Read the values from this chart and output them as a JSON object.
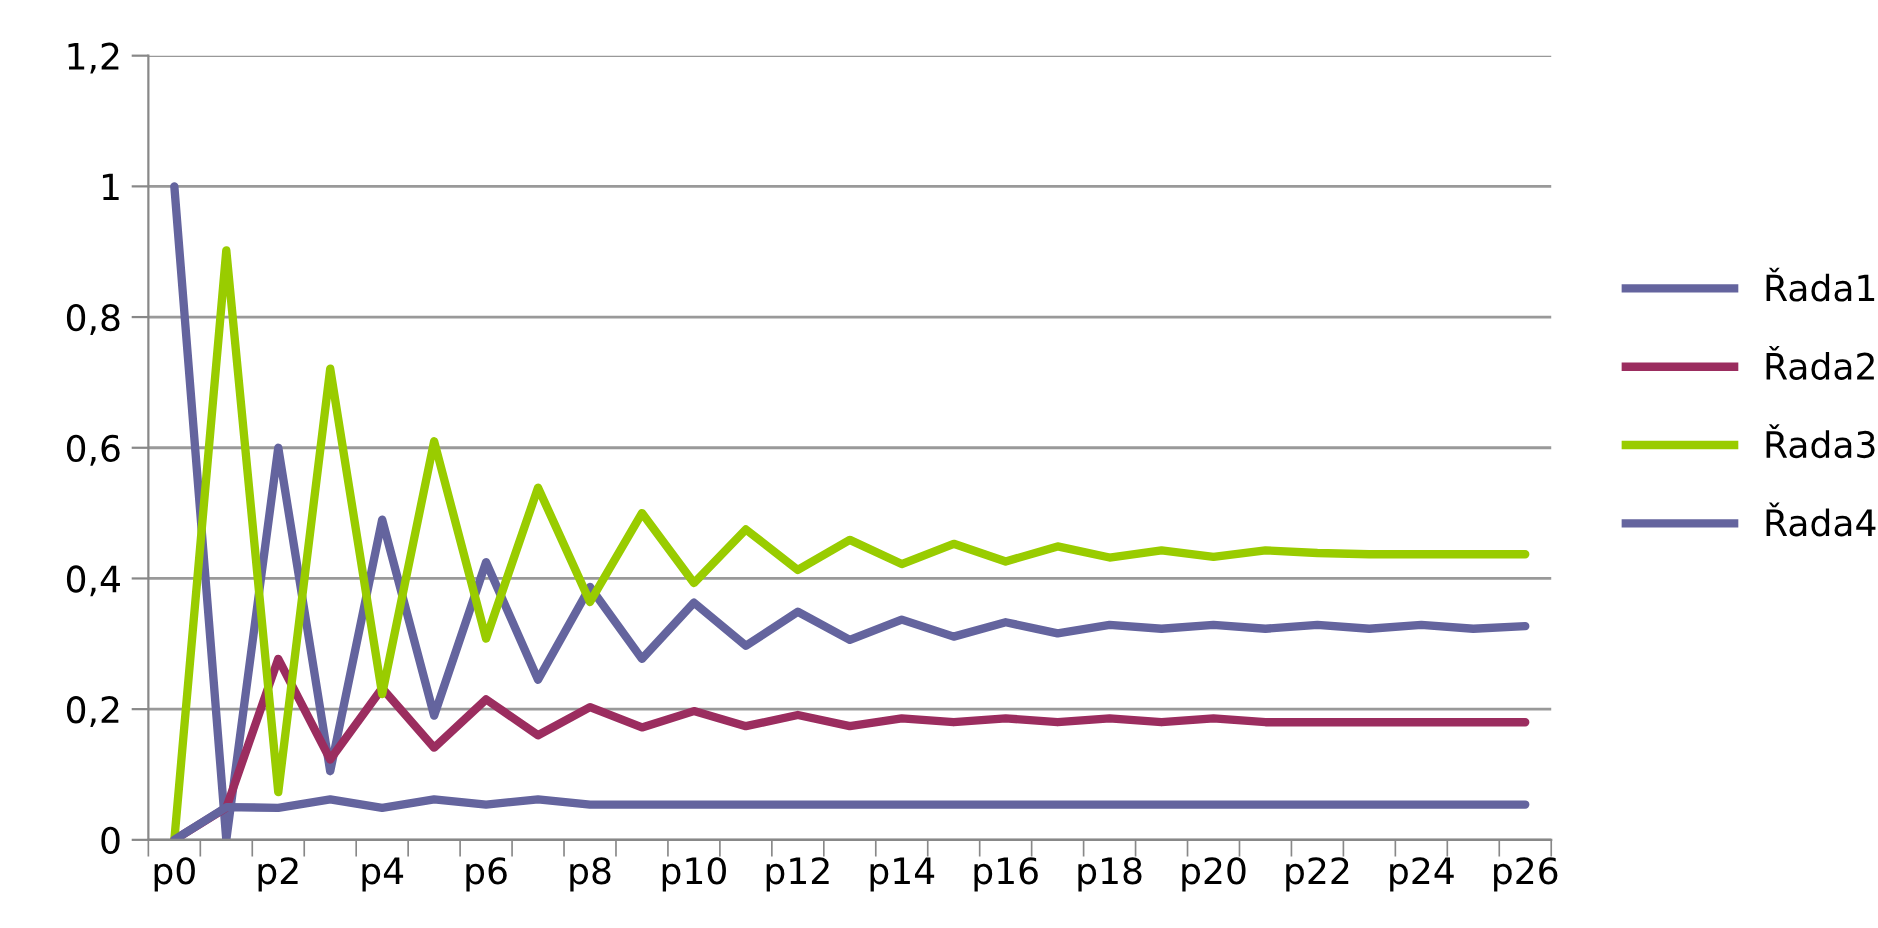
{
  "chart_data": {
    "type": "line",
    "categories": [
      "p0",
      null,
      "p2",
      null,
      "p4",
      null,
      "p6",
      null,
      "p8",
      null,
      "p10",
      null,
      "p12",
      null,
      "p14",
      null,
      "p16",
      null,
      "p18",
      null,
      "p20",
      null,
      "p22",
      null,
      "p24",
      null,
      "p26"
    ],
    "series": [
      {
        "name": "Řada1",
        "color": "#64649e",
        "values": [
          1.0,
          0,
          0.6,
          0.105,
          0.49,
          0.19,
          0.425,
          0.245,
          0.387,
          0.277,
          0.363,
          0.297,
          0.349,
          0.306,
          0.337,
          0.311,
          0.333,
          0.316,
          0.329,
          0.323,
          0.329,
          0.323,
          0.329,
          0.323,
          0.329,
          0.323,
          0.327
        ]
      },
      {
        "name": "Řada2",
        "color": "#9b2d5f",
        "values": [
          0,
          0.049,
          0.277,
          0.123,
          0.232,
          0.141,
          0.215,
          0.16,
          0.203,
          0.172,
          0.197,
          0.174,
          0.191,
          0.174,
          0.186,
          0.18,
          0.186,
          0.18,
          0.186,
          0.18,
          0.186,
          0.18,
          0.18,
          0.18,
          0.18,
          0.18,
          0.18
        ]
      },
      {
        "name": "Řada3",
        "color": "#99cc00",
        "values": [
          0,
          0.902,
          0.073,
          0.721,
          0.223,
          0.61,
          0.308,
          0.539,
          0.364,
          0.5,
          0.393,
          0.475,
          0.413,
          0.459,
          0.422,
          0.453,
          0.426,
          0.449,
          0.432,
          0.443,
          0.433,
          0.443,
          0.439,
          0.437,
          0.437,
          0.437,
          0.437
        ]
      },
      {
        "name": "Řada4",
        "color": "#64649e",
        "values": [
          0,
          0.05,
          0.049,
          0.062,
          0.049,
          0.062,
          0.054,
          0.062,
          0.054,
          0.054,
          0.054,
          0.054,
          0.054,
          0.054,
          0.054,
          0.054,
          0.054,
          0.054,
          0.054,
          0.054,
          0.054,
          0.054,
          0.054,
          0.054,
          0.054,
          0.054,
          0.054
        ]
      }
    ],
    "ylim": [
      0,
      1.2
    ],
    "yticks": [
      0,
      {
        "value": 0.2,
        "label": "0,2"
      },
      {
        "value": 0.4,
        "label": "0,4"
      },
      {
        "value": 0.6,
        "label": "0,6"
      },
      {
        "value": 0.8,
        "label": "0,8"
      },
      1,
      {
        "value": 1.2,
        "label": "1,2"
      }
    ],
    "grid": "y",
    "legend": "right",
    "marker": "none",
    "line_style": "solid"
  }
}
